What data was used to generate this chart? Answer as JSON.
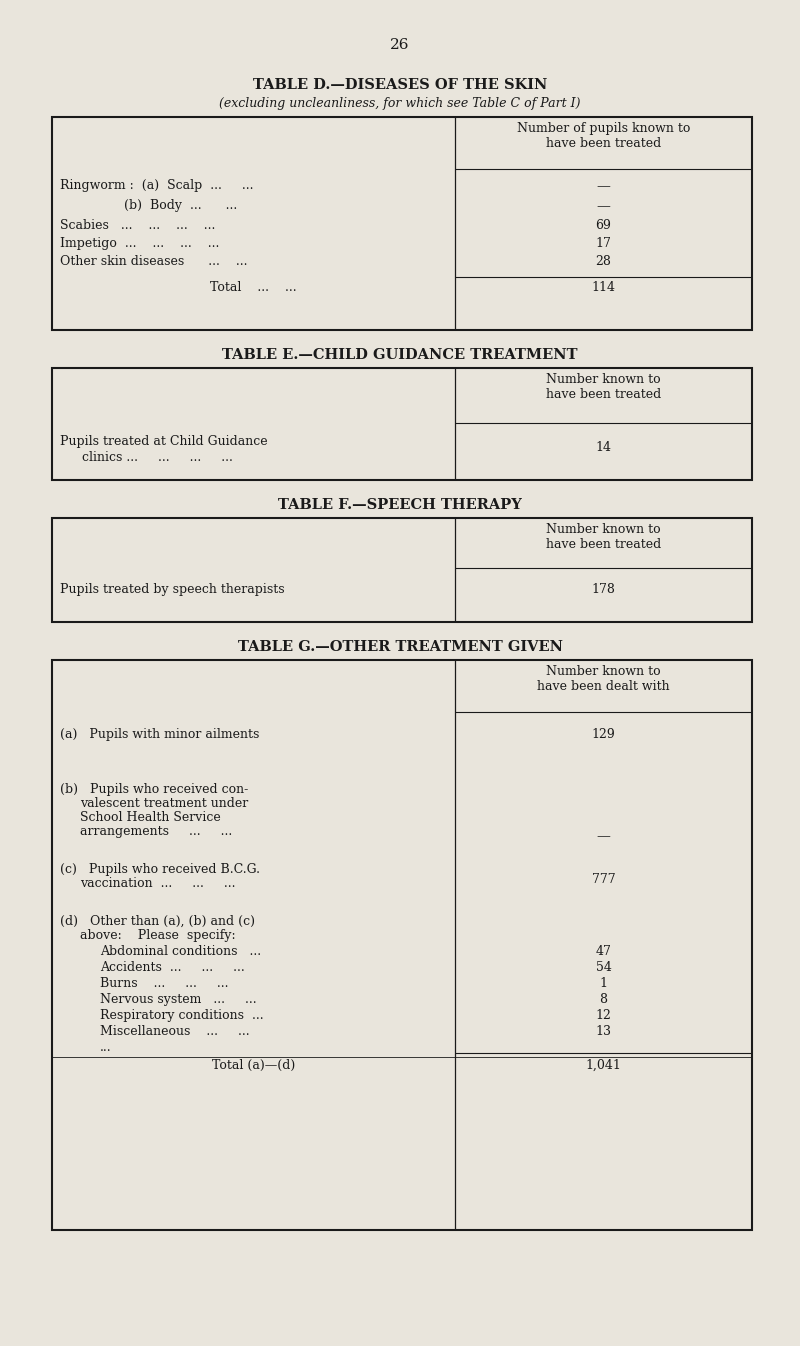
{
  "page_number": "26",
  "bg_color": "#e9e5dc",
  "text_color": "#1a1a1a",
  "table_D": {
    "title": "TABLE D.—DISEASES OF THE SKIN",
    "subtitle": "(excluding uncleanliness, for which see Table C of Part I)",
    "col_header": "Number of pupils known to\nhave been treated"
  },
  "table_E": {
    "title": "TABLE E.—CHILD GUIDANCE TREATMENT",
    "col_header": "Number known to\nhave been treated"
  },
  "table_F": {
    "title": "TABLE F.—SPEECH THERAPY",
    "col_header": "Number known to\nhave been treated"
  },
  "table_G": {
    "title": "TABLE G.—OTHER TREATMENT GIVEN",
    "col_header": "Number known to\nhave been dealt with"
  }
}
